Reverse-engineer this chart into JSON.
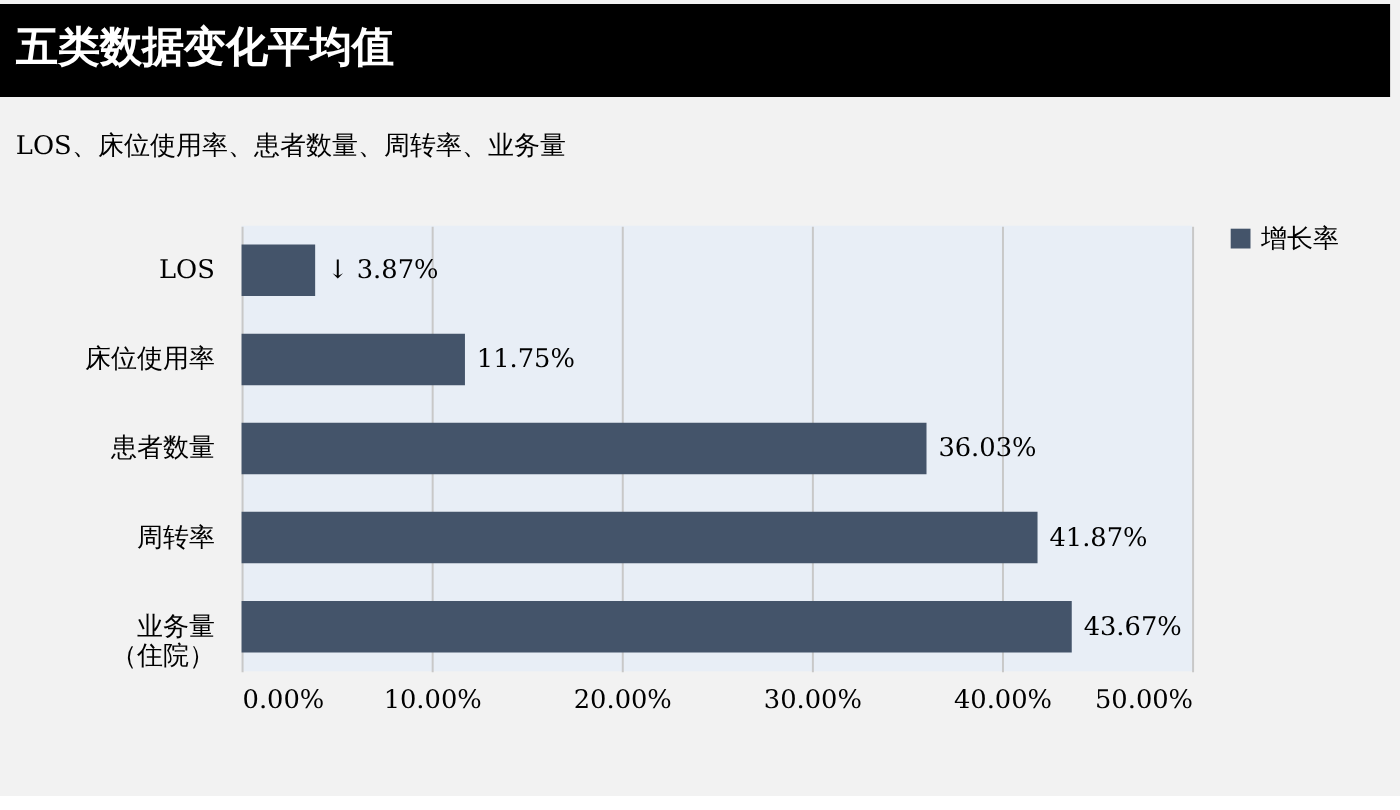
{
  "chart_data": {
    "type": "bar",
    "orientation": "horizontal",
    "title": "五类数据变化平均值",
    "subtitle": "LOS、床位使用率、患者数量、周转率、业务量",
    "categories": [
      "LOS",
      "床位使用率",
      "患者数量",
      "周转率",
      "业务量（住院）"
    ],
    "series": [
      {
        "name": "增长率",
        "color": "#44546a",
        "values": [
          3.87,
          11.75,
          36.03,
          41.87,
          43.67
        ]
      }
    ],
    "value_labels": [
      "↓ 3.87%",
      "11.75%",
      "36.03%",
      "41.87%",
      "43.67%"
    ],
    "xlim": [
      0,
      50
    ],
    "xticks": [
      {
        "value": 0,
        "label": "0.00%"
      },
      {
        "value": 10,
        "label": "10.00%"
      },
      {
        "value": 20,
        "label": "20.00%"
      },
      {
        "value": 30,
        "label": "30.00%"
      },
      {
        "value": 40,
        "label": "40.00%"
      },
      {
        "value": 50,
        "label": "50.00%"
      }
    ],
    "grid": "x",
    "legend": "right"
  }
}
